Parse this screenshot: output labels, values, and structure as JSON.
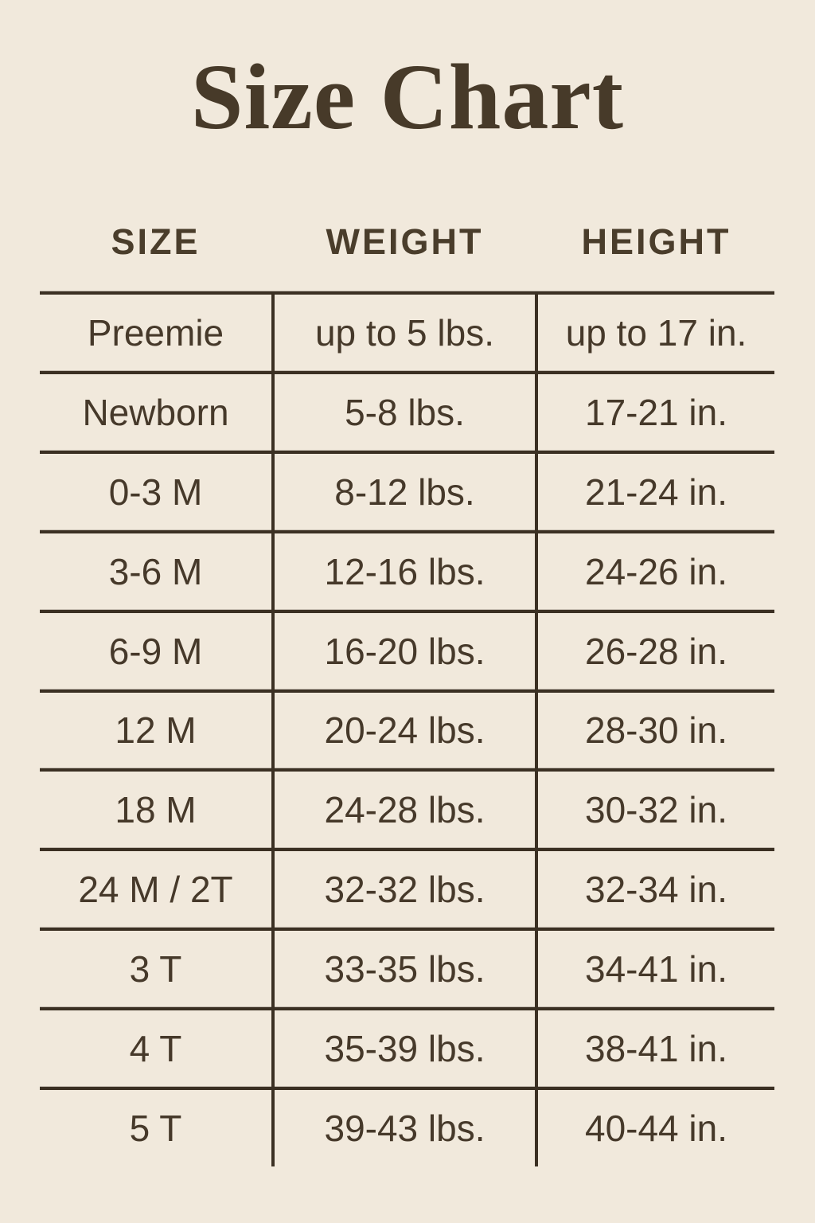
{
  "title": "Size Chart",
  "colors": {
    "background": "#f1e9dc",
    "text": "#46392a",
    "line": "#3b3023"
  },
  "chart_data": {
    "type": "table",
    "title": "Size Chart",
    "columns": [
      "SIZE",
      "WEIGHT",
      "HEIGHT"
    ],
    "rows": [
      [
        "Preemie",
        "up to 5 lbs.",
        "up to 17 in."
      ],
      [
        "Newborn",
        "5-8 lbs.",
        "17-21 in."
      ],
      [
        "0-3 M",
        "8-12 lbs.",
        "21-24 in."
      ],
      [
        "3-6 M",
        "12-16 lbs.",
        "24-26 in."
      ],
      [
        "6-9 M",
        "16-20 lbs.",
        "26-28 in."
      ],
      [
        "12 M",
        "20-24 lbs.",
        "28-30 in."
      ],
      [
        "18 M",
        "24-28 lbs.",
        "30-32 in."
      ],
      [
        "24 M / 2T",
        "32-32 lbs.",
        "32-34 in."
      ],
      [
        "3 T",
        "33-35 lbs.",
        "34-41 in."
      ],
      [
        "4 T",
        "35-39 lbs.",
        "38-41 in."
      ],
      [
        "5 T",
        "39-43 lbs.",
        "40-44 in."
      ]
    ]
  }
}
